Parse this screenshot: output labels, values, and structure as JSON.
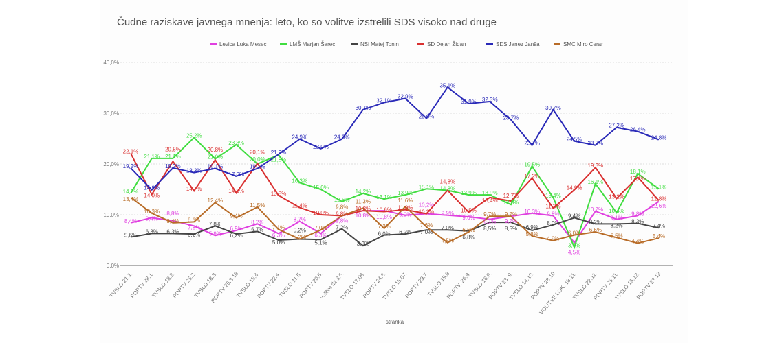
{
  "chart_data": {
    "type": "line",
    "title": "Čudne raziskave javnega mnenja: leto, ko so volitve izstrelili SDS visoko nad druge",
    "xlabel": "stranka",
    "ylabel": "",
    "ylim": [
      0,
      40
    ],
    "yticks": [
      "0,0%",
      "10,0%",
      "20,0%",
      "30,0%",
      "40,0%"
    ],
    "grid": true,
    "legend": "top",
    "categories": [
      "TVSLO 21.1.",
      "POPTV 28.1.",
      "TVSLO 18.2.",
      "POPTV 25.2.",
      "TVSLO 18.3.",
      "POPTV 25.3.18",
      "TVSLO 15.4.",
      "POPTV 22.4.",
      "TVSLO 11.5.",
      "POPTV 20.5.",
      "volitve dz 3.6.",
      "TVSLO 17.06.",
      "POPTV 24.6.",
      "TVSLO 15.07.",
      "POPTV 29.7.",
      "TVSLO 19.8",
      "POPTV, 26.8.",
      "TVSLO 16.9.",
      "POPTV 23. 9.",
      "TVSLO 14.10.",
      "POPTV 28.10",
      "VOLITVE LOK. 18.11.",
      "TVSLO 22.11.",
      "POPTV 25.11.",
      "TVSLO 16.12.",
      "POPTV 23.12"
    ],
    "series": [
      {
        "name": "Levica Luka Mesec",
        "color": "#e040e0",
        "values": [
          8.4,
          9.4,
          8.8,
          7.8,
          5.9,
          6.9,
          8.2,
          6.3,
          8.7,
          6.3,
          9.8,
          10.8,
          10.8,
          9.9,
          10.2,
          9.9,
          9.6,
          9.1,
          9.7,
          10.3,
          9.8,
          4.5,
          10.7,
          9.1,
          9.8,
          12.6
        ]
      },
      {
        "name": "LMŠ Marjan Šarec",
        "color": "#40dd40",
        "values": [
          14.2,
          21.1,
          21.1,
          25.2,
          21.0,
          23.8,
          20.0,
          21.8,
          16.3,
          15.0,
          12.6,
          14.2,
          13.1,
          13.9,
          15.1,
          14.8,
          13.9,
          13.9,
          12.0,
          19.5,
          13.4,
          3.6,
          16.1,
          10.4,
          18.1,
          15.1
        ]
      },
      {
        "name": "NSi Matej Tonin",
        "color": "#444444",
        "values": [
          5.6,
          6.3,
          6.3,
          6.2,
          7.8,
          6.2,
          6.7,
          5.0,
          5.2,
          5.1,
          7.2,
          3.9,
          6.0,
          6.2,
          7.0,
          7.0,
          6.8,
          8.5,
          8.5,
          6.9,
          8.0,
          9.4,
          8.2,
          8.2,
          8.3,
          7.4
        ]
      },
      {
        "name": "SD Dejan Židan",
        "color": "#d93030",
        "values": [
          22.1,
          14.0,
          20.5,
          14.7,
          20.8,
          14.3,
          20.1,
          13.8,
          11.4,
          10.0,
          9.8,
          10.8,
          10.6,
          11.0,
          10.2,
          14.8,
          10.5,
          13.4,
          12.7,
          17.2,
          11.3,
          14.9,
          19.3,
          13.2,
          17.4,
          12.8
        ]
      },
      {
        "name": "SDS Janez Janša",
        "color": "#2a2ab8",
        "values": [
          19.2,
          14.9,
          19.2,
          18.3,
          19.1,
          17.6,
          19.1,
          21.9,
          24.9,
          23.0,
          24.9,
          30.7,
          32.1,
          32.9,
          29.0,
          35.1,
          31.9,
          32.3,
          28.7,
          23.7,
          30.7,
          24.5,
          23.7,
          27.2,
          26.4,
          24.8
        ]
      },
      {
        "name": "SMC Miro Cerar",
        "color": "#b86c28",
        "values": [
          13.4,
          10.3,
          8.4,
          8.6,
          12.4,
          9.4,
          11.5,
          7.1,
          5.2,
          7.0,
          9.8,
          11.3,
          7.3,
          11.6,
          7.6,
          4.5,
          6.6,
          9.7,
          9.7,
          5.8,
          4.9,
          6.0,
          6.6,
          5.5,
          4.4,
          5.4
        ]
      }
    ]
  }
}
